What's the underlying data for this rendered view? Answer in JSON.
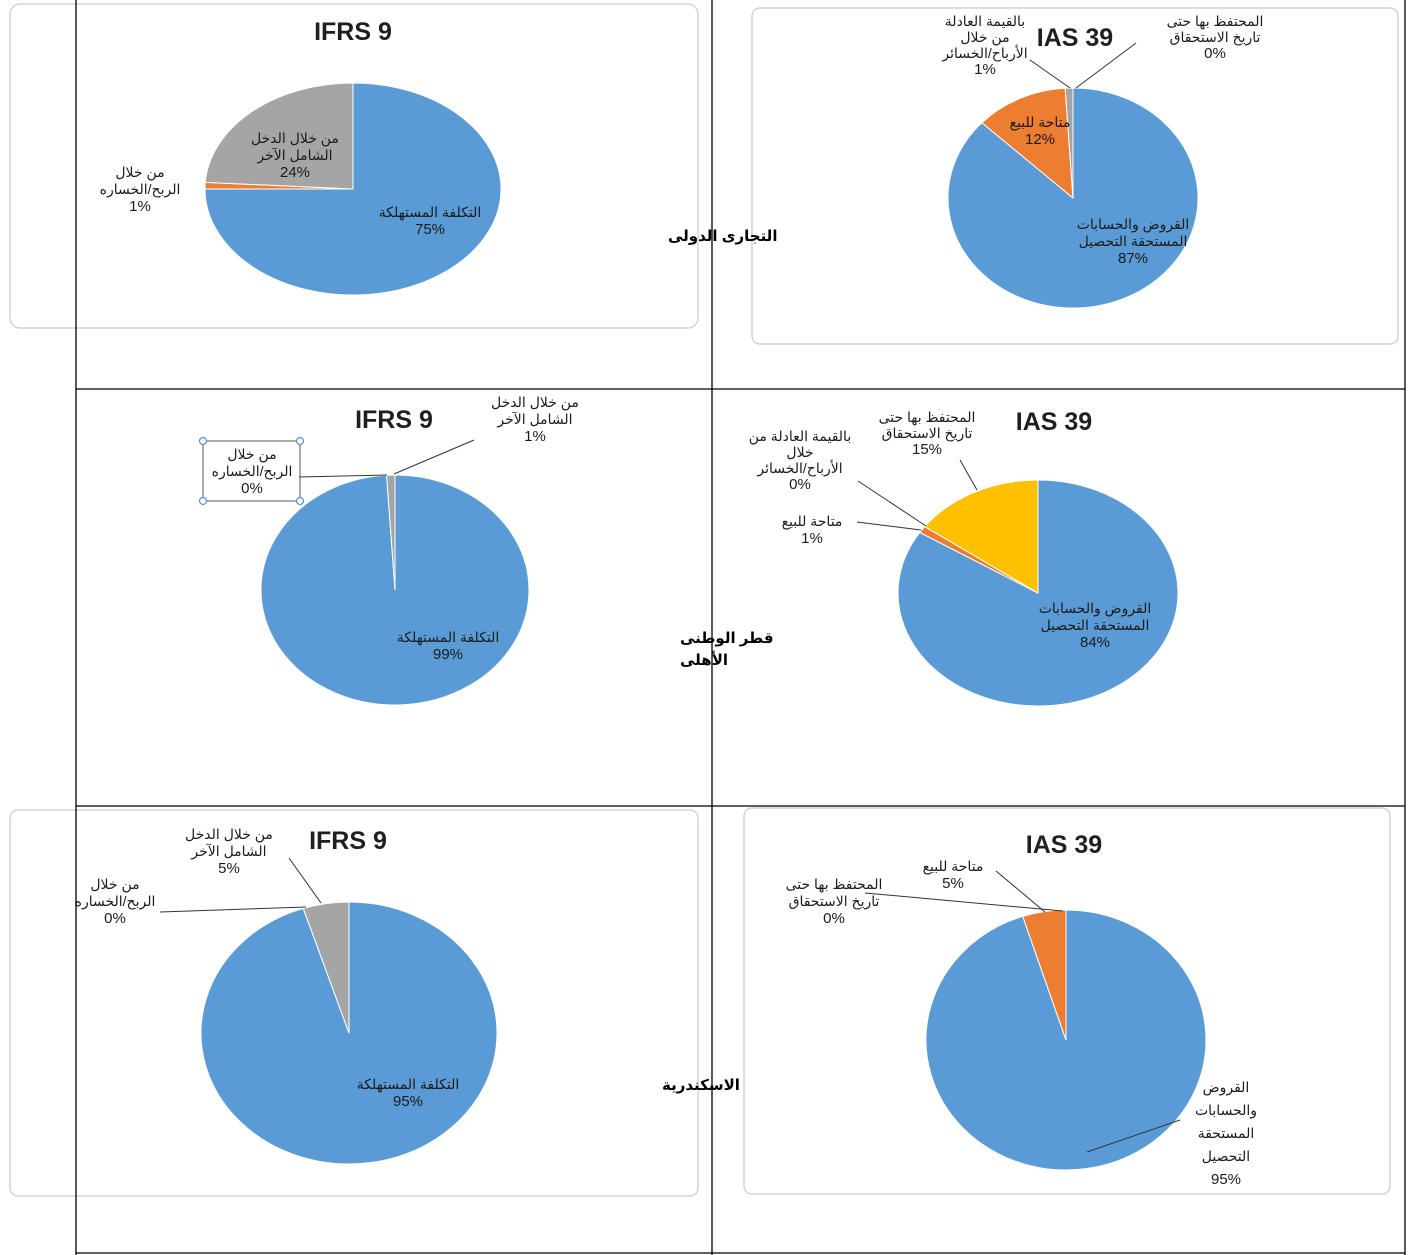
{
  "colors": {
    "blue": "#5b9bd5",
    "orange": "#ed7d31",
    "gray": "#a5a5a5",
    "yellow": "#ffc000"
  },
  "banks": [
    {
      "name_lines": [
        "التجارى الدولى"
      ]
    },
    {
      "name_lines": [
        "قطر الوطنى",
        "الأهلى"
      ]
    },
    {
      "name_lines": [
        "الاسكندرية"
      ]
    }
  ],
  "chart_data": [
    {
      "id": "cib-ifrs9",
      "type": "pie",
      "title": "IFRS 9",
      "slices": [
        {
          "label_lines": [
            "التكلفة المستهلكة"
          ],
          "value": 75,
          "pct_label": "75%",
          "color": "#5b9bd5"
        },
        {
          "label_lines": [
            "من خلال",
            "الربح/الخساره"
          ],
          "value": 1,
          "pct_label": "1%",
          "color": "#ed7d31"
        },
        {
          "label_lines": [
            "من خلال الدخل",
            "الشامل الآخر"
          ],
          "value": 24,
          "pct_label": "24%",
          "color": "#a5a5a5"
        }
      ]
    },
    {
      "id": "cib-ias39",
      "type": "pie",
      "title": "IAS 39",
      "slices": [
        {
          "label_lines": [
            "القروض والحسابات",
            "المستحقة التحصيل"
          ],
          "value": 87,
          "pct_label": "87%",
          "color": "#5b9bd5"
        },
        {
          "label_lines": [
            "متاحة للبيع"
          ],
          "value": 12,
          "pct_label": "12%",
          "color": "#ed7d31"
        },
        {
          "label_lines": [
            "بالقيمة العادلة",
            "من خلال",
            "الأرباح/الخسائر"
          ],
          "value": 1,
          "pct_label": "1%",
          "color": "#a5a5a5"
        },
        {
          "label_lines": [
            "المحتفظ بها حتى",
            "تاريخ الاستحقاق"
          ],
          "value": 0,
          "pct_label": "0%",
          "color": "#ffc000"
        }
      ]
    },
    {
      "id": "qnb-ifrs9",
      "type": "pie",
      "title": "IFRS 9",
      "slices": [
        {
          "label_lines": [
            "التكلفة المستهلكة"
          ],
          "value": 99,
          "pct_label": "99%",
          "color": "#5b9bd5"
        },
        {
          "label_lines": [
            "من خلال",
            "الربح/الخساره"
          ],
          "value": 0,
          "pct_label": "0%",
          "color": "#ed7d31"
        },
        {
          "label_lines": [
            "من خلال الدخل",
            "الشامل الآخر"
          ],
          "value": 1,
          "pct_label": "1%",
          "color": "#a5a5a5"
        }
      ]
    },
    {
      "id": "qnb-ias39",
      "type": "pie",
      "title": "IAS 39",
      "slices": [
        {
          "label_lines": [
            "القروض والحسابات",
            "المستحقة التحصيل"
          ],
          "value": 84,
          "pct_label": "84%",
          "color": "#5b9bd5"
        },
        {
          "label_lines": [
            "متاحة للبيع"
          ],
          "value": 1,
          "pct_label": "1%",
          "color": "#ed7d31"
        },
        {
          "label_lines": [
            "بالقيمة العادلة من",
            "خلال",
            "الأرباح/الخسائر"
          ],
          "value": 0,
          "pct_label": "0%",
          "color": "#a5a5a5"
        },
        {
          "label_lines": [
            "المحتفظ بها حتى",
            "تاريخ الاستحقاق"
          ],
          "value": 15,
          "pct_label": "15%",
          "color": "#ffc000"
        }
      ]
    },
    {
      "id": "alex-ifrs9",
      "type": "pie",
      "title": "IFRS 9",
      "slices": [
        {
          "label_lines": [
            "التكلفة المستهلكة"
          ],
          "value": 95,
          "pct_label": "95%",
          "color": "#5b9bd5"
        },
        {
          "label_lines": [
            "من خلال",
            "الربح/الخساره"
          ],
          "value": 0,
          "pct_label": "0%",
          "color": "#ed7d31"
        },
        {
          "label_lines": [
            "من خلال الدخل",
            "الشامل الآخر"
          ],
          "value": 5,
          "pct_label": "5%",
          "color": "#a5a5a5"
        }
      ]
    },
    {
      "id": "alex-ias39",
      "type": "pie",
      "title": "IAS 39",
      "slices": [
        {
          "label_lines": [
            "القروض",
            "والحسابات",
            "المستحقة",
            "التحصيل"
          ],
          "value": 95,
          "pct_label": "95%",
          "color": "#5b9bd5"
        },
        {
          "label_lines": [
            "متاحة للبيع"
          ],
          "value": 5,
          "pct_label": "5%",
          "color": "#ed7d31"
        },
        {
          "label_lines": [
            "المحتفظ بها حتى",
            "تاريخ الاستحقاق"
          ],
          "value": 0,
          "pct_label": "0%",
          "color": "#ffc000"
        }
      ]
    }
  ]
}
